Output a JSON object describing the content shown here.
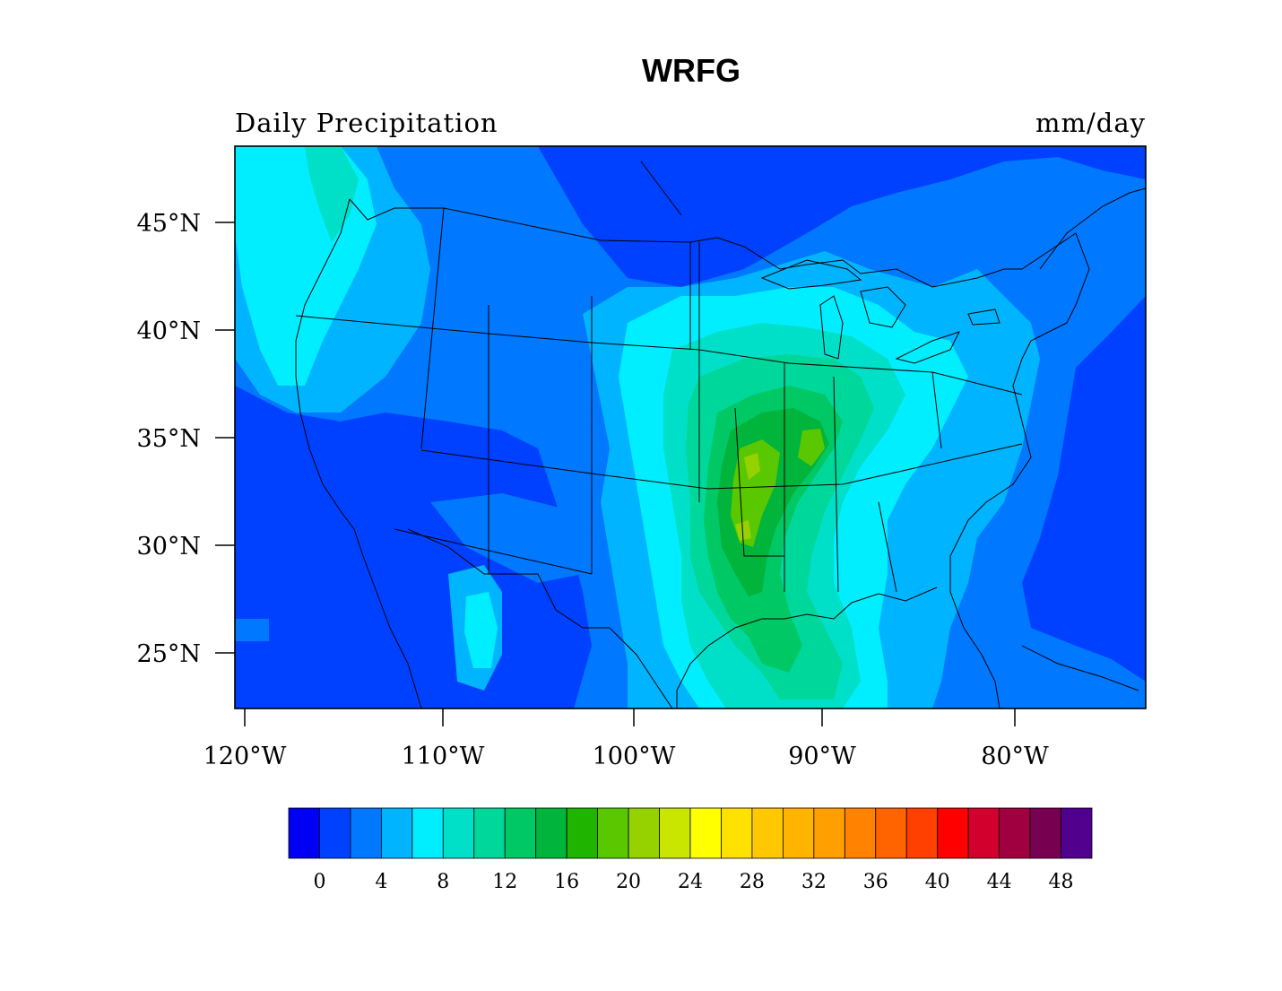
{
  "title": "WRFG",
  "left_string": "Daily Precipitation",
  "right_string": "mm/day",
  "map": {
    "lon_ticks": [
      "120°W",
      "110°W",
      "100°W",
      "90°W",
      "80°W"
    ],
    "lat_ticks": [
      "45°N",
      "40°N",
      "35°N",
      "30°N",
      "25°N"
    ]
  },
  "colorbar": {
    "labels": [
      "0",
      "4",
      "8",
      "12",
      "16",
      "20",
      "24",
      "28",
      "32",
      "36",
      "40",
      "44",
      "48"
    ],
    "colors": [
      "#0000f5",
      "#0040ff",
      "#0078ff",
      "#00b4ff",
      "#00eeff",
      "#00e0c8",
      "#00d79a",
      "#00c864",
      "#00b43c",
      "#1eb400",
      "#5ac800",
      "#96d200",
      "#c8e600",
      "#ffff00",
      "#ffe100",
      "#ffc800",
      "#ffb400",
      "#ffa000",
      "#ff8200",
      "#ff6400",
      "#ff4000",
      "#ff0000",
      "#d2002d",
      "#a00040",
      "#780050",
      "#50008c"
    ]
  },
  "field_colors": {
    "background": "#0040ff",
    "light": "#0078ff",
    "medium": "#00b4ff",
    "cyan": "#00eeff",
    "aqua": "#00e0c8",
    "teal": "#00d79a",
    "green": "#00c864",
    "deep_green": "#00b43c",
    "lime": "#5ac800",
    "yellow_green": "#96d200"
  }
}
